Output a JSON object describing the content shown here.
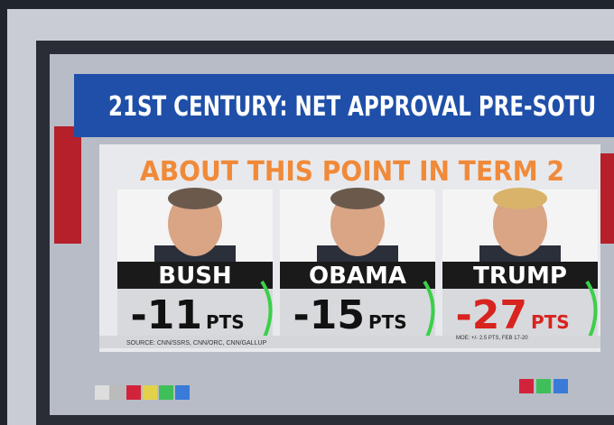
{
  "header": {
    "title": "21ST CENTURY: NET APPROVAL PRE-SOTU",
    "subtitle": "ABOUT THIS POINT IN TERM 2"
  },
  "panels": [
    {
      "name": "BUSH",
      "value": -11,
      "unit": "PTS",
      "color": "#111111"
    },
    {
      "name": "OBAMA",
      "value": -15,
      "unit": "PTS",
      "color": "#111111"
    },
    {
      "name": "TRUMP",
      "value": -27,
      "unit": "PTS",
      "color": "#d8231f"
    }
  ],
  "footer": {
    "source": "SOURCE: CNN/SSRS, CNN/ORC, CNN/GALLUP",
    "moe": "MOE: +/- 2.5 PTS, FEB 17-20"
  }
}
